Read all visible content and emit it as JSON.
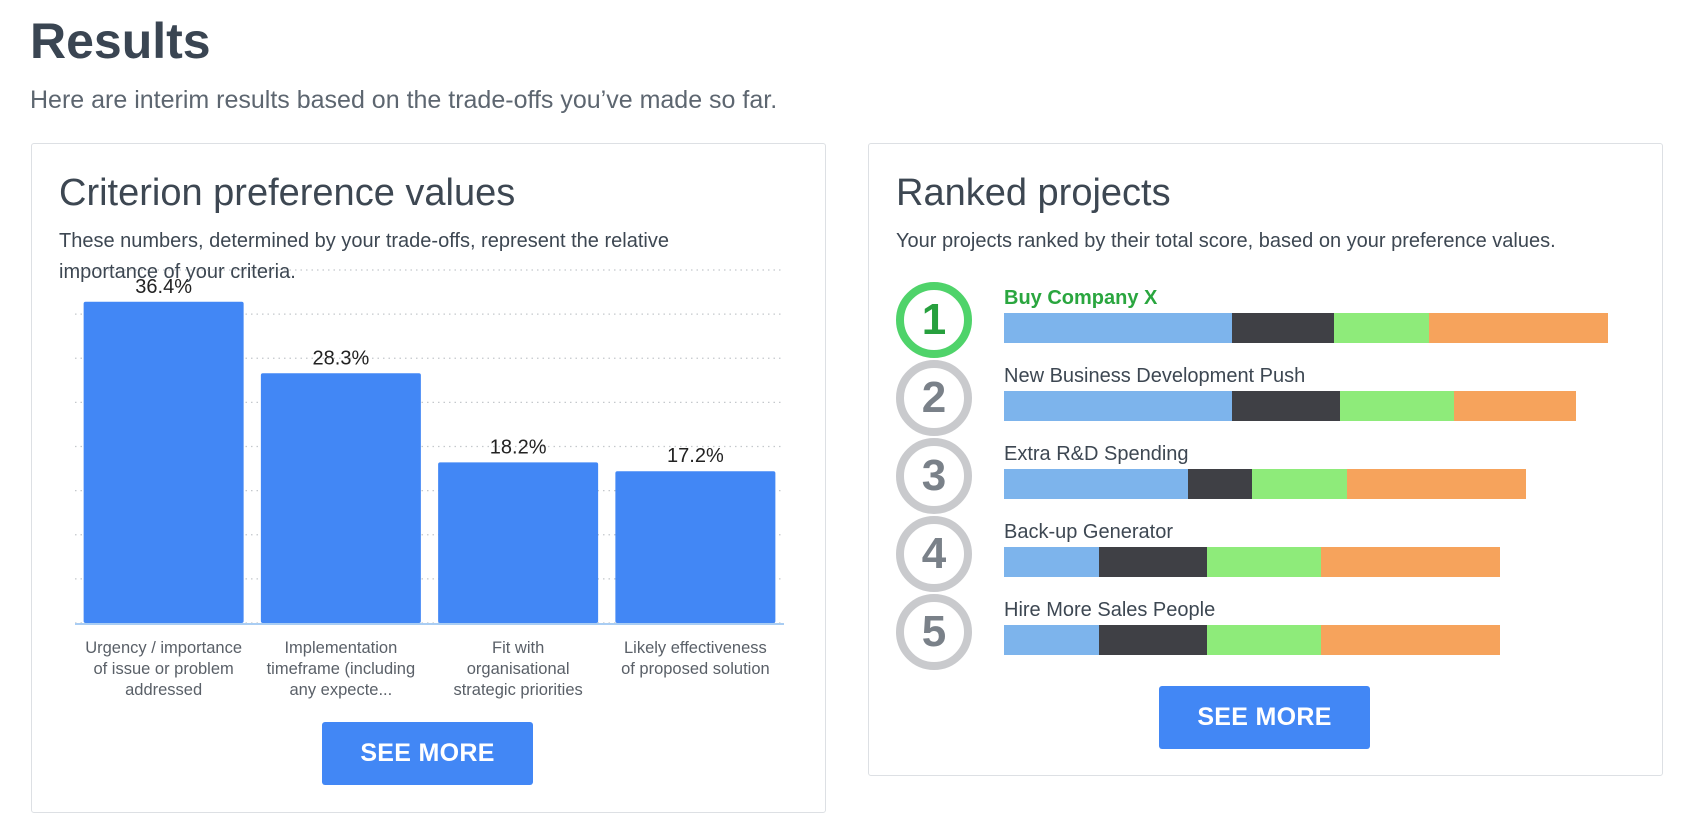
{
  "page": {
    "title": "Results",
    "subtitle": "Here are interim results based on the trade-offs you’ve made so far."
  },
  "criteria_card": {
    "title": "Criterion preference values",
    "description": "These numbers, determined by your trade-offs, represent the relative importance of your criteria.",
    "see_more_label": "SEE MORE"
  },
  "projects_card": {
    "title": "Ranked projects",
    "description": "Your projects ranked by their total score, based on your preference values.",
    "see_more_label": "SEE MORE",
    "segment_colors": [
      "#7db4ec",
      "#3f4045",
      "#8eeb7a",
      "#f6a35c"
    ],
    "projects": [
      {
        "rank": "1",
        "name": "Buy Company X",
        "segments": [
          0.228,
          0.102,
          0.095,
          0.179
        ]
      },
      {
        "rank": "2",
        "name": "New Business Development Push",
        "segments": [
          0.228,
          0.108,
          0.114,
          0.122
        ]
      },
      {
        "rank": "3",
        "name": "Extra R&D Spending",
        "segments": [
          0.184,
          0.064,
          0.095,
          0.179
        ]
      },
      {
        "rank": "4",
        "name": "Back-up Generator",
        "segments": [
          0.095,
          0.108,
          0.114,
          0.179
        ]
      },
      {
        "rank": "5",
        "name": "Hire More Sales People",
        "segments": [
          0.095,
          0.108,
          0.114,
          0.179
        ]
      }
    ]
  },
  "chart_data": {
    "type": "bar",
    "categories": [
      [
        "Urgency / importance",
        "of issue or problem",
        "addressed"
      ],
      [
        "Implementation",
        "timeframe (including",
        "any expecte..."
      ],
      [
        "Fit with",
        "organisational",
        "strategic priorities"
      ],
      [
        "Likely effectiveness",
        "of proposed solution"
      ]
    ],
    "values": [
      36.4,
      28.3,
      18.2,
      17.2
    ],
    "data_labels": [
      "36.4%",
      "28.3%",
      "18.2%",
      "17.2%"
    ],
    "bar_color": "#4287f5",
    "ylim": [
      0,
      40
    ],
    "grid": "dotted horizontal"
  }
}
